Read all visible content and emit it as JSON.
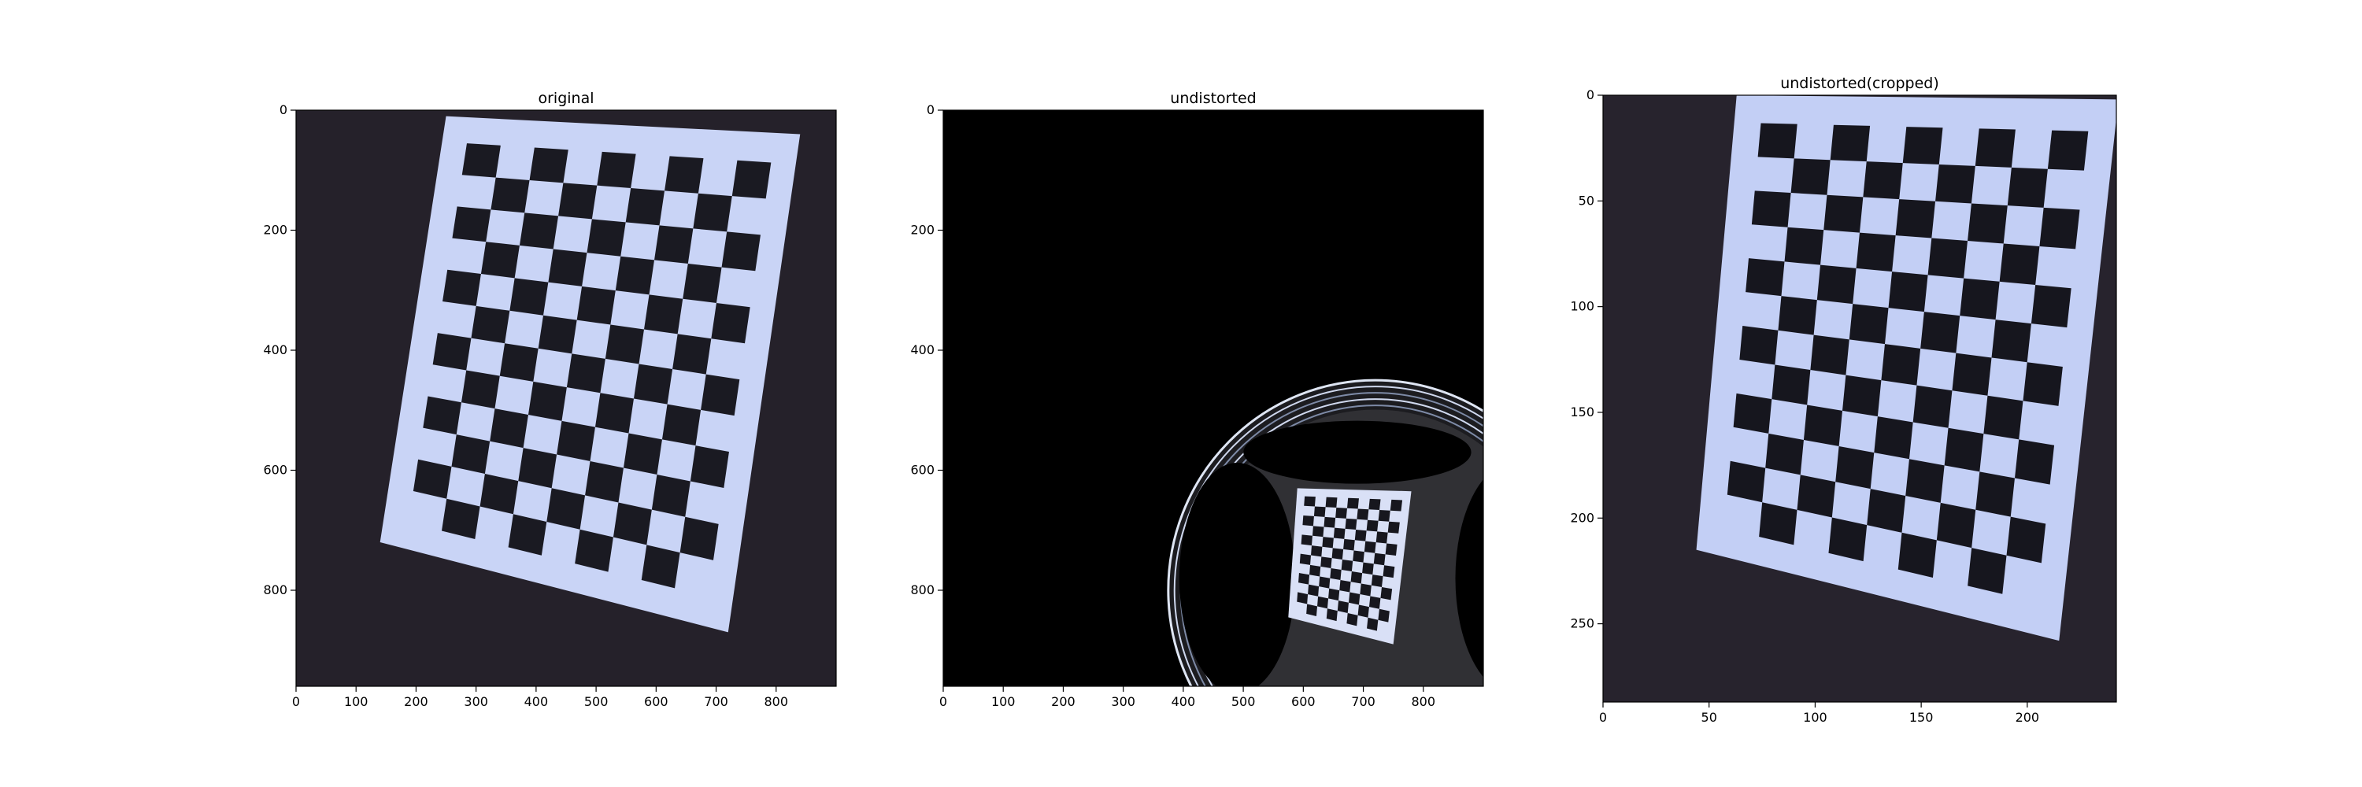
{
  "chart_data": [
    {
      "type": "image",
      "title": "original",
      "xlim": [
        0,
        900
      ],
      "ylim": [
        960,
        0
      ],
      "xticks": [
        0,
        100,
        200,
        300,
        400,
        500,
        600,
        700,
        800
      ],
      "yticks": [
        0,
        200,
        400,
        600,
        800
      ],
      "content": {
        "background": "#25212a",
        "board": {
          "corners": [
            [
              250,
              10
            ],
            [
              840,
              40
            ],
            [
              720,
              870
            ],
            [
              140,
              720
            ]
          ],
          "rows": 12,
          "cols": 9,
          "paper_color": "#c9d4f6",
          "square_color": "#1a1a22"
        }
      }
    },
    {
      "type": "image",
      "title": "undistorted",
      "xlim": [
        0,
        900
      ],
      "ylim": [
        960,
        0
      ],
      "xticks": [
        0,
        100,
        200,
        300,
        400,
        500,
        600,
        700,
        800
      ],
      "yticks": [
        0,
        200,
        400,
        600,
        800
      ],
      "content": {
        "background": "#000000",
        "ring": {
          "cx": 720,
          "cy": 800,
          "rx": 345,
          "ry": 350
        },
        "board": {
          "corners": [
            [
              590,
              630
            ],
            [
              780,
              635
            ],
            [
              750,
              890
            ],
            [
              575,
              845
            ]
          ],
          "rows": 12,
          "cols": 9,
          "paper_color": "#d9e0f6",
          "square_color": "#17171e"
        }
      }
    },
    {
      "type": "image",
      "title": "undistorted(cropped)",
      "xlim": [
        0,
        242
      ],
      "ylim": [
        287,
        0
      ],
      "xticks": [
        0,
        50,
        100,
        150,
        200
      ],
      "yticks": [
        0,
        50,
        100,
        150,
        200,
        250
      ],
      "content": {
        "background": "#27232d",
        "board": {
          "corners": [
            [
              63,
              0
            ],
            [
              243,
              2
            ],
            [
              215,
              258
            ],
            [
              44,
              215
            ]
          ],
          "rows": 12,
          "cols": 9,
          "paper_color": "#c3cff5",
          "square_color": "#16161e"
        }
      }
    }
  ]
}
